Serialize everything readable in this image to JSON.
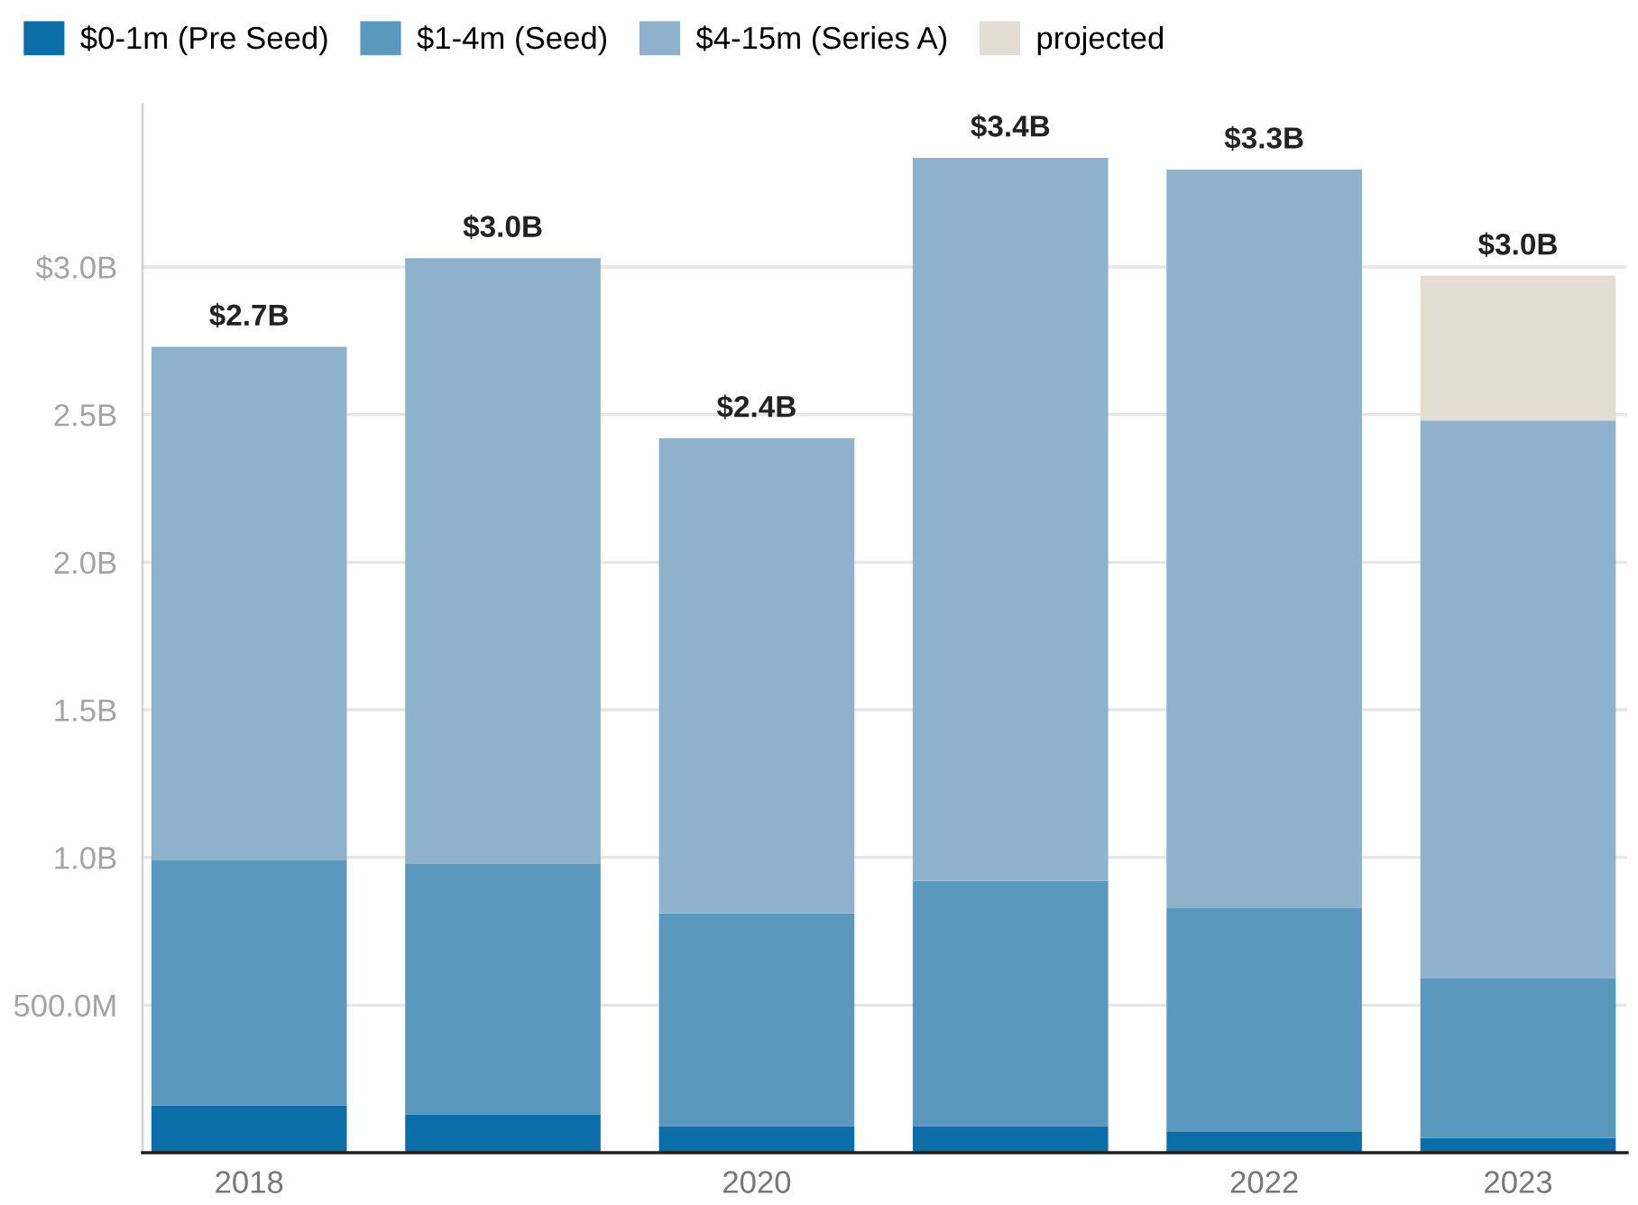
{
  "chart_data": {
    "type": "bar",
    "stacked": true,
    "categories": [
      "2018",
      null,
      "2020",
      null,
      "2022",
      "2023"
    ],
    "series": [
      {
        "name": "$0-1m (Pre Seed)",
        "color": "#0b6ea9",
        "values": [
          160000000,
          130000000,
          90000000,
          90000000,
          70000000,
          50000000
        ]
      },
      {
        "name": "$1-4m (Seed)",
        "color": "#5b98be",
        "values": [
          830000000,
          850000000,
          720000000,
          830000000,
          760000000,
          540000000
        ]
      },
      {
        "name": "$4-15m (Series A)",
        "color": "#8eb1cc",
        "values": [
          1740000000,
          2050000000,
          1610000000,
          2450000000,
          2500000000,
          1890000000
        ]
      },
      {
        "name": "projected",
        "color": "#e2dcd2",
        "values": [
          null,
          null,
          null,
          null,
          null,
          490000000
        ]
      }
    ],
    "ylim": [
      0,
      3550000000
    ],
    "yticks": [
      {
        "value": 500000000,
        "label": "500.0M"
      },
      {
        "value": 1000000000,
        "label": "1.0B"
      },
      {
        "value": 1500000000,
        "label": "1.5B"
      },
      {
        "value": 2000000000,
        "label": "2.0B"
      },
      {
        "value": 2500000000,
        "label": "2.5B"
      },
      {
        "value": 3000000000,
        "label": "$3.0B"
      }
    ],
    "totals": [
      "$2.7B",
      "$3.0B",
      "$2.4B",
      "$3.4B",
      "$3.3B",
      "$3.0B"
    ],
    "grid": "y",
    "legend": "top left"
  }
}
